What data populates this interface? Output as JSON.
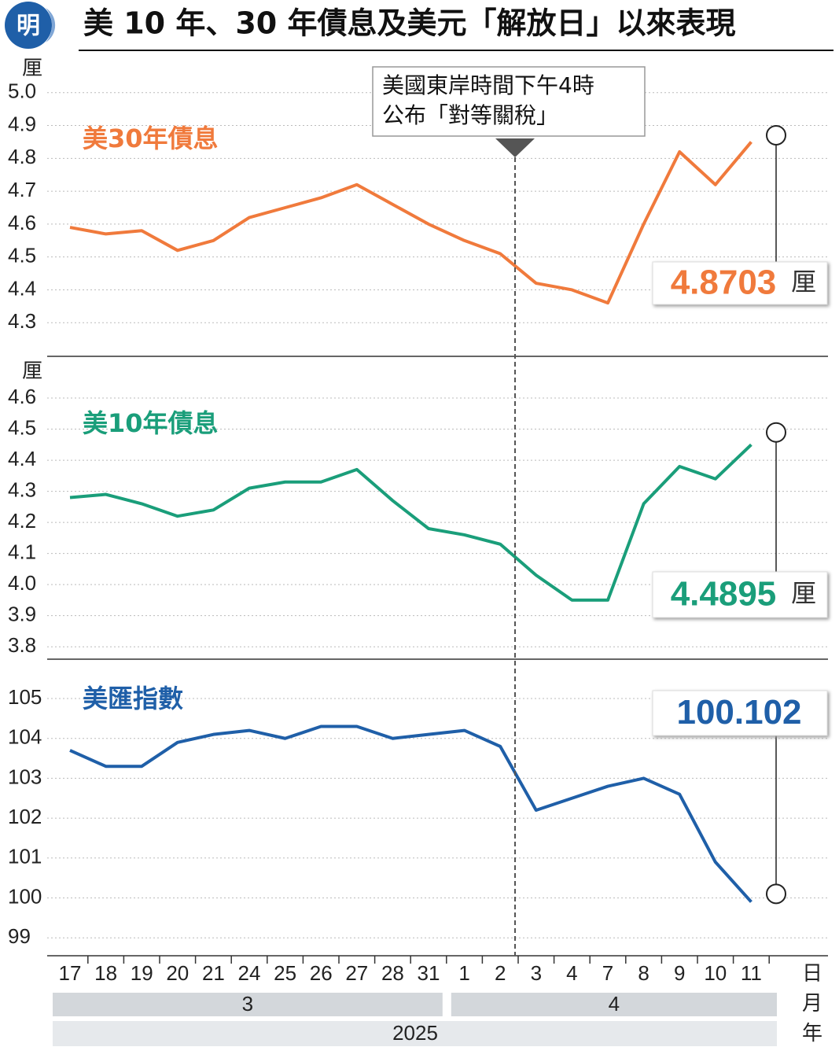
{
  "logo": "明",
  "title": "美 10 年、30 年債息及美元「解放日」以來表現",
  "chart_data": [
    {
      "type": "line",
      "unit": "厘",
      "ylim": [
        4.2,
        5.1
      ],
      "yticks": [
        4.3,
        4.4,
        4.5,
        4.6,
        4.7,
        4.8,
        4.9,
        {
          "value": 5,
          "label": "5.0"
        }
      ],
      "series": [
        {
          "name": "美30年債息",
          "color": "#f07a3c",
          "values": [
            4.59,
            4.57,
            4.58,
            4.52,
            4.55,
            4.62,
            4.65,
            4.68,
            4.72,
            4.66,
            4.6,
            4.55,
            4.51,
            4.42,
            4.4,
            4.36,
            4.6,
            4.82,
            4.72,
            4.85
          ]
        }
      ],
      "last_value": 4.8703,
      "last_unit": "厘",
      "annotation": [
        "美國東岸時間下午4時",
        "公布「對等關稅」"
      ]
    },
    {
      "type": "line",
      "unit": "厘",
      "ylim": [
        3.76,
        4.7
      ],
      "yticks": [
        3.8,
        3.9,
        {
          "value": 4,
          "label": "4.0"
        },
        4.1,
        4.2,
        4.3,
        4.4,
        4.5,
        4.6
      ],
      "series": [
        {
          "name": "美10年債息",
          "color": "#1a9e7a",
          "values": [
            4.28,
            4.29,
            4.26,
            4.22,
            4.24,
            4.31,
            4.33,
            4.33,
            4.37,
            4.27,
            4.18,
            4.16,
            4.13,
            4.03,
            3.95,
            3.95,
            4.26,
            4.38,
            4.34,
            4.45
          ]
        }
      ],
      "last_value": 4.4895,
      "last_unit": "厘"
    },
    {
      "type": "line",
      "ylim": [
        98.55,
        105.8
      ],
      "yticks": [
        99,
        100,
        101,
        102,
        103,
        104,
        105
      ],
      "series": [
        {
          "name": "美匯指數",
          "color": "#1f5fa8",
          "values": [
            103.7,
            103.3,
            103.3,
            103.9,
            104.1,
            104.2,
            104,
            104.3,
            104.3,
            104,
            104.1,
            104.2,
            103.8,
            102.2,
            102.5,
            102.8,
            103,
            102.6,
            100.9,
            99.9
          ]
        }
      ],
      "last_value": 100.102,
      "categories": [
        "17",
        "18",
        "19",
        "20",
        "21",
        "24",
        "25",
        "26",
        "27",
        "28",
        "31",
        "1",
        "2",
        "3",
        "4",
        "7",
        "8",
        "9",
        "10",
        "11"
      ],
      "months": [
        {
          "label": "3",
          "from": 0,
          "to": 10
        },
        {
          "label": "4",
          "from": 11,
          "to": 19
        }
      ],
      "year": "2025",
      "axis_units": [
        "日",
        "月",
        "年"
      ]
    }
  ]
}
